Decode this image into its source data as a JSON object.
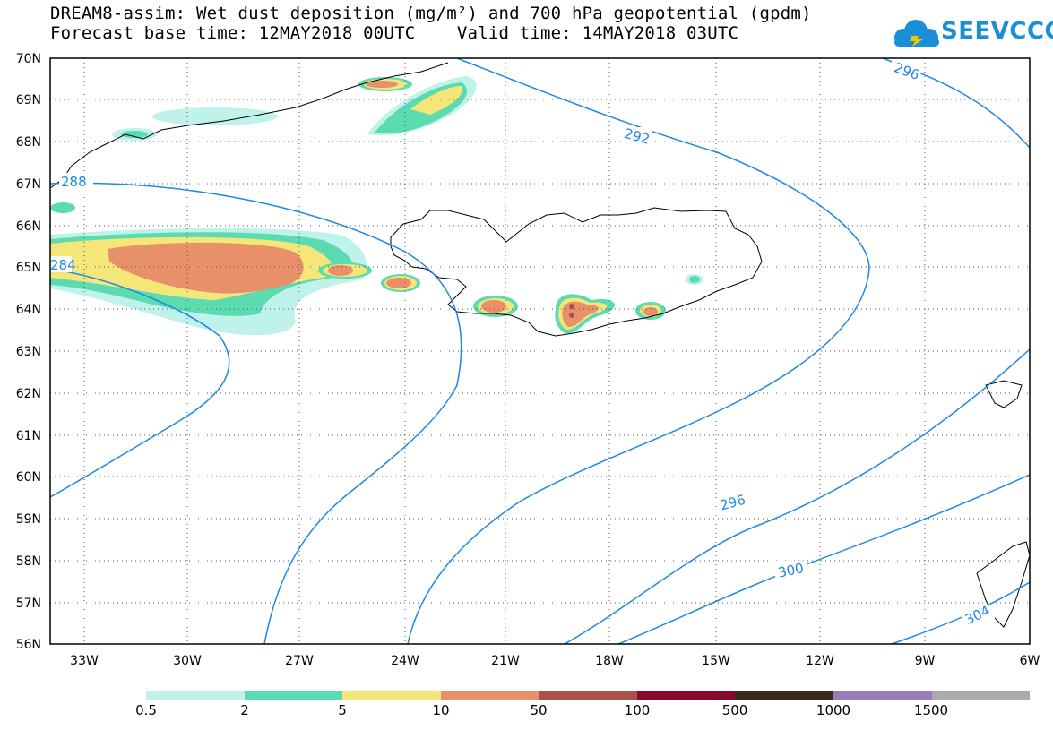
{
  "title": {
    "line1": "DREAM8-assim: Wet dust deposition (mg/m²) and 700 hPa geopotential (gpdm)",
    "line2": "Forecast base time: 12MAY2018 00UTC    Valid time: 14MAY2018 03UTC"
  },
  "logo": {
    "text": "SEEVCCC",
    "color": "#1a8fd8"
  },
  "axes": {
    "lat_labels": [
      "70N",
      "69N",
      "68N",
      "67N",
      "66N",
      "65N",
      "64N",
      "63N",
      "62N",
      "61N",
      "60N",
      "59N",
      "58N",
      "57N",
      "56N"
    ],
    "lon_labels": [
      "33W",
      "30W",
      "27W",
      "24W",
      "21W",
      "18W",
      "15W",
      "12W",
      "9W",
      "6W"
    ]
  },
  "contour_labels": [
    "296",
    "292",
    "288",
    "284",
    "296",
    "300",
    "304"
  ],
  "legend": {
    "colors": [
      "#bff2ea",
      "#5ddbb0",
      "#f5e67a",
      "#e8906a",
      "#a8524a",
      "#8a0a2e",
      "#3a2a1a",
      "#9a7ab8",
      "#aaaaaa"
    ],
    "labels": [
      "0.5",
      "2",
      "5",
      "10",
      "50",
      "100",
      "500",
      "1000",
      "1500"
    ]
  }
}
